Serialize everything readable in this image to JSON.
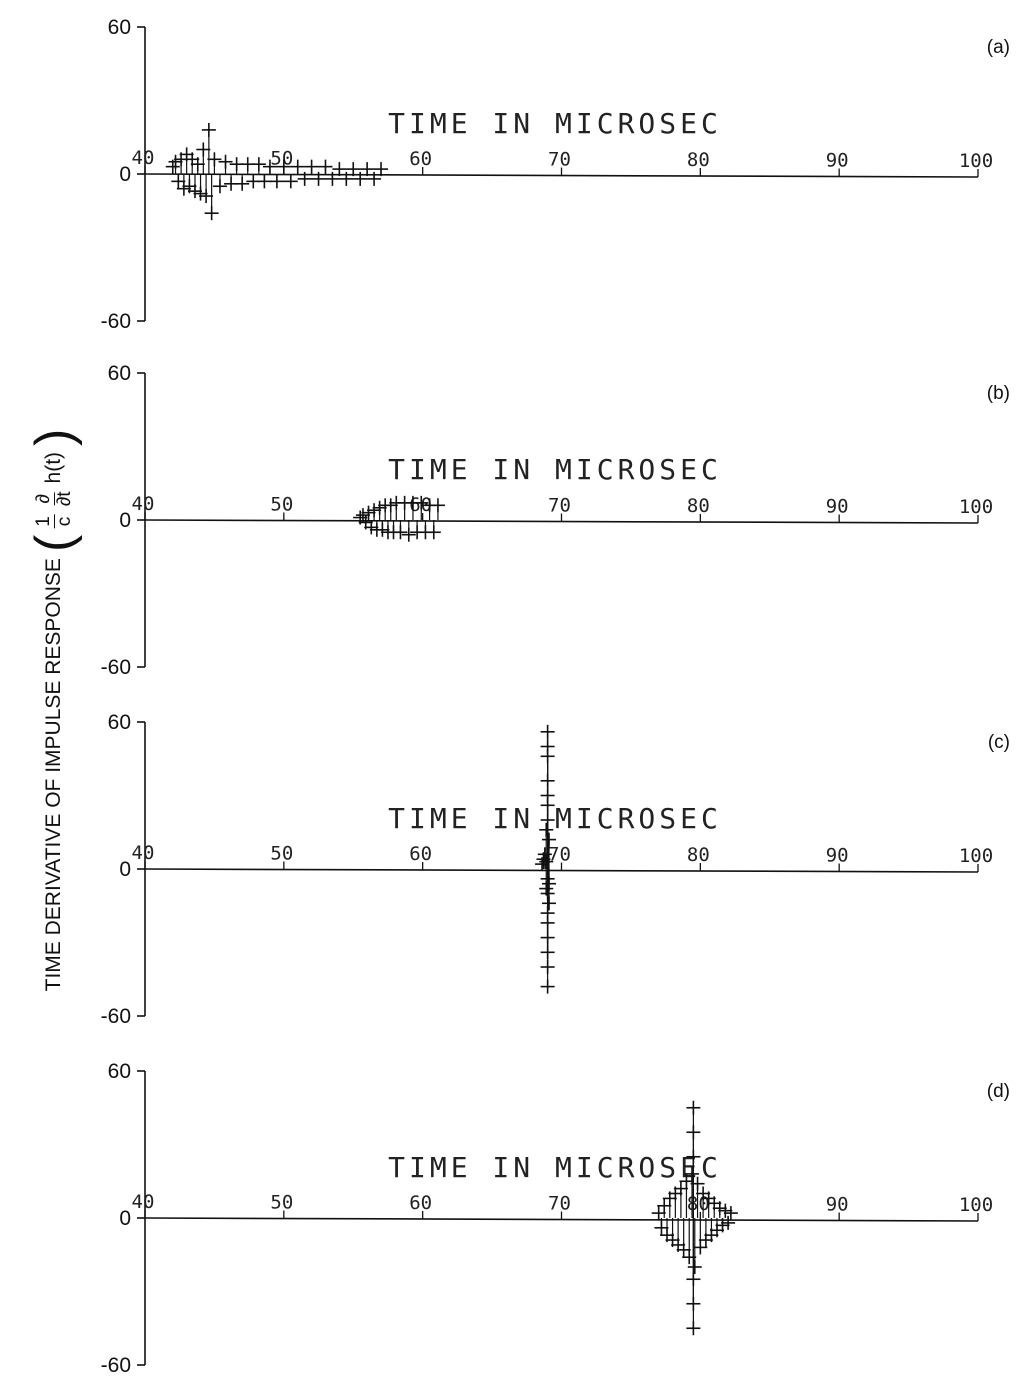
{
  "ylabel": {
    "text": "TIME DERIVATIVE OF IMPULSE RESPONSE",
    "num_1": "1",
    "den_1": "c",
    "num_2": "∂",
    "den_2": "∂t",
    "func": "h(t)"
  },
  "chart_data": [
    {
      "type": "scatter",
      "panel_label": "(a)",
      "xlabel": "TIME IN MICROSEC",
      "xlim": [
        40,
        100
      ],
      "ylim": [
        -60,
        60
      ],
      "x_ticks": [
        "40",
        "50",
        "60",
        "70",
        "80",
        "90",
        "100"
      ],
      "y_ticks": [
        "60",
        "0",
        "-60"
      ],
      "series": [
        {
          "x": [
            42.0,
            42.2,
            42.4,
            42.6,
            42.8,
            43.0,
            43.2,
            43.4,
            43.6,
            43.8,
            44.0,
            44.2,
            44.4,
            44.6,
            44.8,
            45.0,
            45.4,
            45.8,
            46.2,
            46.6,
            47.0,
            47.4,
            47.8,
            48.2,
            48.6,
            49.0,
            49.5,
            50.0,
            50.5,
            51.0,
            51.5,
            52.0,
            52.5,
            53.0,
            53.5,
            54.0,
            54.5,
            55.0,
            55.5,
            56.0,
            56.5,
            57.0
          ],
          "y": [
            3,
            5,
            -3,
            6,
            -6,
            8,
            -5,
            6,
            -7,
            4,
            -8,
            10,
            -9,
            18,
            -16,
            6,
            -5,
            5,
            -4,
            4,
            -4,
            4,
            -3,
            4,
            -3,
            3,
            -3,
            3,
            -3,
            3,
            -2,
            3,
            -2,
            3,
            -2,
            2,
            -2,
            2,
            -2,
            2,
            -2,
            2
          ]
        }
      ]
    },
    {
      "type": "scatter",
      "panel_label": "(b)",
      "xlabel": "TIME IN MICROSEC",
      "xlim": [
        40,
        100
      ],
      "ylim": [
        -60,
        60
      ],
      "x_ticks": [
        "40",
        "50",
        "60",
        "70",
        "80",
        "90",
        "100"
      ],
      "y_ticks": [
        "60",
        "0",
        "-60"
      ],
      "series": [
        {
          "x": [
            55.5,
            55.7,
            55.9,
            56.1,
            56.3,
            56.5,
            56.7,
            56.9,
            57.1,
            57.3,
            57.5,
            57.7,
            57.9,
            58.1,
            58.4,
            58.7,
            59.0,
            59.3,
            59.6,
            59.9,
            60.2,
            60.5,
            60.8,
            61.1
          ],
          "y": [
            1,
            2,
            -1,
            3,
            -3,
            4,
            -4,
            5,
            -4,
            6,
            -5,
            6,
            -5,
            7,
            -5,
            7,
            -6,
            7,
            -5,
            7,
            -5,
            6,
            -5,
            6
          ]
        }
      ]
    },
    {
      "type": "scatter",
      "panel_label": "(c)",
      "xlabel": "TIME IN MICROSEC",
      "xlim": [
        40,
        100
      ],
      "ylim": [
        -60,
        60
      ],
      "x_ticks": [
        "40",
        "50",
        "60",
        "70",
        "80",
        "90",
        "100"
      ],
      "y_ticks": [
        "60",
        "0",
        "-60"
      ],
      "series": [
        {
          "x": [
            68.6,
            68.7,
            68.8,
            68.9,
            69.0,
            69.1,
            68.9,
            69.0,
            69.1,
            68.9,
            69.0,
            69.1,
            69.0,
            69.0,
            69.0,
            69.0,
            69.0,
            69.0,
            69.0,
            69.0,
            69.0,
            69.0,
            69.0,
            69.0
          ],
          "y": [
            2,
            4,
            6,
            3,
            -4,
            -6,
            -8,
            -10,
            12,
            16,
            20,
            -14,
            -18,
            -22,
            26,
            30,
            -28,
            -34,
            36,
            46,
            -40,
            -48,
            50,
            56
          ]
        }
      ]
    },
    {
      "type": "scatter",
      "panel_label": "(d)",
      "xlabel": "TIME IN MICROSEC",
      "xlim": [
        40,
        100
      ],
      "ylim": [
        -60,
        60
      ],
      "x_ticks": [
        "40",
        "50",
        "60",
        "70",
        "80",
        "90",
        "100"
      ],
      "y_ticks": [
        "60",
        "0",
        "-60"
      ],
      "series": [
        {
          "x": [
            77.0,
            77.2,
            77.4,
            77.6,
            77.8,
            78.0,
            78.2,
            78.4,
            78.6,
            78.8,
            79.0,
            79.2,
            79.4,
            79.6,
            79.8,
            80.0,
            80.2,
            80.4,
            80.6,
            80.8,
            81.0,
            81.2,
            81.4,
            81.6,
            81.8,
            82.0,
            82.2,
            79.5,
            79.5,
            79.5,
            79.5,
            79.5,
            79.5
          ],
          "y": [
            2,
            -4,
            5,
            -7,
            8,
            -9,
            10,
            -11,
            12,
            -13,
            15,
            -16,
            18,
            -20,
            14,
            -12,
            10,
            -9,
            8,
            -7,
            6,
            -5,
            4,
            -3,
            3,
            -2,
            2,
            25,
            -25,
            35,
            -35,
            45,
            -45
          ]
        }
      ]
    }
  ]
}
